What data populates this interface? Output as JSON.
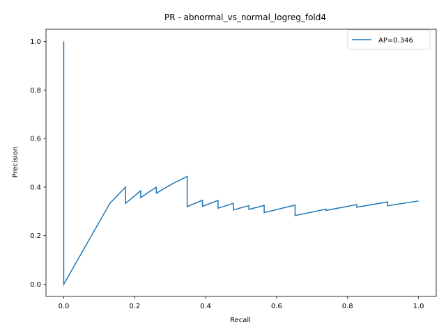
{
  "chart_data": {
    "type": "line",
    "title": "PR - abnormal_vs_normal_logreg_fold4",
    "xlabel": "Recall",
    "ylabel": "Precision",
    "xlim": [
      -0.05,
      1.05
    ],
    "ylim": [
      -0.05,
      1.05
    ],
    "xticks": [
      0.0,
      0.2,
      0.4,
      0.6,
      0.8,
      1.0
    ],
    "xtick_labels": [
      "0.0",
      "0.2",
      "0.4",
      "0.6",
      "0.8",
      "1.0"
    ],
    "yticks": [
      0.0,
      0.2,
      0.4,
      0.6,
      0.8,
      1.0
    ],
    "ytick_labels": [
      "0.0",
      "0.2",
      "0.4",
      "0.6",
      "0.8",
      "1.0"
    ],
    "grid": false,
    "legend_position": "top-right",
    "series": [
      {
        "name": "AP=0.346",
        "color": "#1f77b4",
        "x": [
          0.0,
          0.0,
          0.13,
          0.174,
          0.174,
          0.217,
          0.217,
          0.261,
          0.261,
          0.304,
          0.348,
          0.348,
          0.391,
          0.391,
          0.435,
          0.435,
          0.478,
          0.478,
          0.522,
          0.522,
          0.565,
          0.565,
          0.652,
          0.652,
          0.739,
          0.739,
          0.826,
          0.826,
          0.913,
          0.913,
          1.0
        ],
        "y": [
          1.0,
          0.0,
          0.333,
          0.4,
          0.333,
          0.385,
          0.357,
          0.4,
          0.375,
          0.412,
          0.444,
          0.32,
          0.346,
          0.321,
          0.345,
          0.313,
          0.333,
          0.306,
          0.324,
          0.308,
          0.325,
          0.295,
          0.326,
          0.283,
          0.309,
          0.304,
          0.328,
          0.317,
          0.339,
          0.323,
          0.343
        ]
      }
    ]
  }
}
